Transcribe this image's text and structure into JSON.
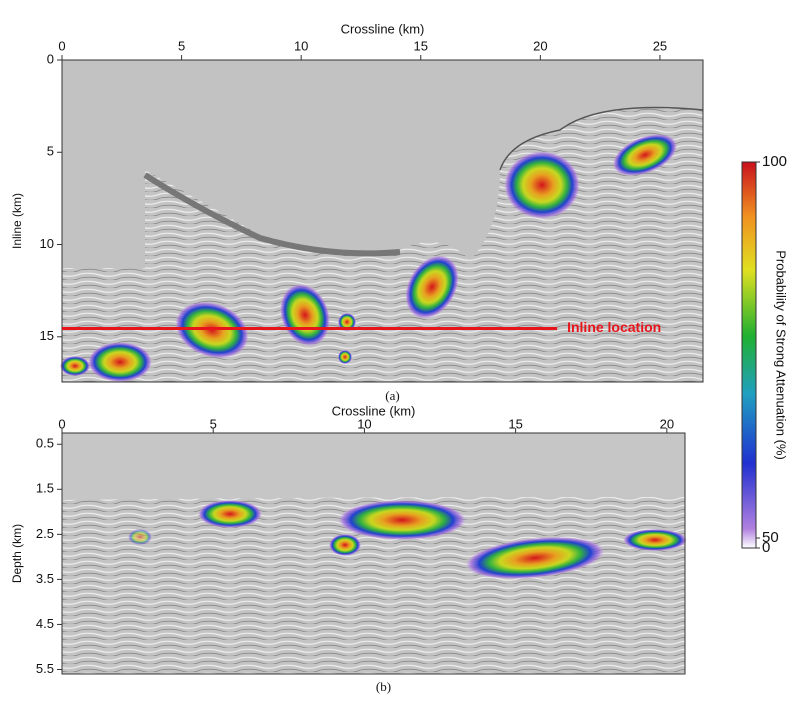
{
  "chart_data": [
    {
      "type": "heatmap",
      "xlabel": "Crossline (km)",
      "ylabel": "Inline (km)",
      "xlim": [
        0,
        26.8
      ],
      "xticks": [
        0,
        5,
        10,
        15,
        20,
        25
      ],
      "ylim": [
        0,
        17.45
      ],
      "yticks": [
        0,
        5,
        10,
        15
      ],
      "marker_line": {
        "label": "Inline location",
        "y": 14.55,
        "x": [
          0,
          20.7
        ],
        "color": "#e8141c"
      },
      "caption": "(a)"
    },
    {
      "type": "heatmap",
      "xlabel": "Crossline (km)",
      "ylabel": "Depth (km)",
      "xlim": [
        0,
        20.6
      ],
      "xticks": [
        0,
        5,
        10,
        15,
        20
      ],
      "ylim": [
        0.25,
        5.6
      ],
      "yticks": [
        0.5,
        1.5,
        2.5,
        3.5,
        4.5,
        5.5
      ],
      "caption": "(b)"
    }
  ],
  "colorbar": {
    "label": "Probability of Strong Attenuation (%)",
    "ticks": [
      100,
      50,
      0
    ]
  }
}
